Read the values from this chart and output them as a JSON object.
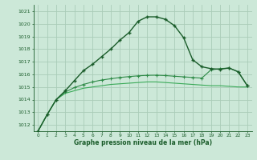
{
  "x": [
    0,
    1,
    2,
    3,
    4,
    5,
    6,
    7,
    8,
    9,
    10,
    11,
    12,
    13,
    14,
    15,
    16,
    17,
    18,
    19,
    20,
    21,
    22,
    23
  ],
  "line1": [
    1011.5,
    1012.8,
    1014.0,
    1014.5,
    1014.7,
    1014.9,
    1015.0,
    1015.1,
    1015.2,
    1015.25,
    1015.3,
    1015.35,
    1015.4,
    1015.4,
    1015.35,
    1015.3,
    1015.25,
    1015.2,
    1015.15,
    1015.1,
    1015.1,
    1015.05,
    1015.0,
    1015.0
  ],
  "line2": [
    1011.5,
    1012.8,
    1014.0,
    1014.6,
    1014.95,
    1015.2,
    1015.4,
    1015.55,
    1015.65,
    1015.75,
    1015.82,
    1015.88,
    1015.92,
    1015.93,
    1015.9,
    1015.85,
    1015.8,
    1015.75,
    1015.7,
    1016.35,
    1016.45,
    1016.5,
    1016.2,
    1015.1
  ],
  "line3": [
    1011.5,
    1012.8,
    1014.0,
    1014.7,
    1015.5,
    1016.3,
    1016.8,
    1017.4,
    1018.0,
    1018.7,
    1019.3,
    1020.2,
    1020.55,
    1020.55,
    1020.35,
    1019.85,
    1018.9,
    1017.15,
    1016.6,
    1016.45,
    1016.4,
    1016.5,
    1016.2,
    1015.1
  ],
  "bg_color": "#cce8d8",
  "grid_color": "#aaccb8",
  "line_dark_color": "#1a5c2a",
  "line_mid_color": "#2d8a46",
  "line_light_color": "#3aaa58",
  "xlabel": "Graphe pression niveau de la mer (hPa)",
  "ylim": [
    1011.5,
    1021.5
  ],
  "xlim": [
    -0.5,
    23.5
  ],
  "yticks": [
    1012,
    1013,
    1014,
    1015,
    1016,
    1017,
    1018,
    1019,
    1020,
    1021
  ],
  "xticks": [
    0,
    1,
    2,
    3,
    4,
    5,
    6,
    7,
    8,
    9,
    10,
    11,
    12,
    13,
    14,
    15,
    16,
    17,
    18,
    19,
    20,
    21,
    22,
    23
  ]
}
